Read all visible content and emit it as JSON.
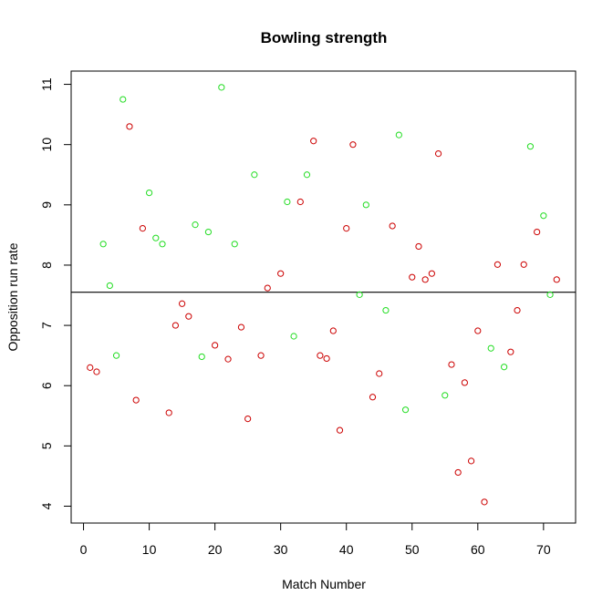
{
  "chart_data": {
    "type": "scatter",
    "title": "Bowling strength",
    "xlabel": "Match Number",
    "ylabel": "Opposition run rate",
    "xlim": [
      -1.88,
      74.88
    ],
    "ylim": [
      3.72,
      11.22
    ],
    "x_ticks": [
      0,
      10,
      20,
      30,
      40,
      50,
      60,
      70
    ],
    "x_tick_labels": [
      "0",
      "10",
      "20",
      "30",
      "40",
      "50",
      "60",
      "70"
    ],
    "y_ticks": [
      4,
      5,
      6,
      7,
      8,
      9,
      10,
      11
    ],
    "y_tick_labels": [
      "4",
      "5",
      "6",
      "7",
      "8",
      "9",
      "10",
      "11"
    ],
    "reference_line": {
      "y": 7.55,
      "color": "#000000"
    },
    "grid": false,
    "colors": {
      "red": "#cc0000",
      "green": "#22dd22"
    },
    "points": [
      {
        "x": 1,
        "y": 6.3,
        "color": "red"
      },
      {
        "x": 2,
        "y": 6.23,
        "color": "red"
      },
      {
        "x": 3,
        "y": 8.35,
        "color": "green"
      },
      {
        "x": 4,
        "y": 7.66,
        "color": "green"
      },
      {
        "x": 5,
        "y": 6.5,
        "color": "green"
      },
      {
        "x": 6,
        "y": 10.75,
        "color": "green"
      },
      {
        "x": 7,
        "y": 10.3,
        "color": "red"
      },
      {
        "x": 8,
        "y": 5.76,
        "color": "red"
      },
      {
        "x": 9,
        "y": 8.61,
        "color": "red"
      },
      {
        "x": 10,
        "y": 9.2,
        "color": "green"
      },
      {
        "x": 11,
        "y": 8.45,
        "color": "green"
      },
      {
        "x": 12,
        "y": 8.35,
        "color": "green"
      },
      {
        "x": 13,
        "y": 5.55,
        "color": "red"
      },
      {
        "x": 14,
        "y": 7.0,
        "color": "red"
      },
      {
        "x": 15,
        "y": 7.36,
        "color": "red"
      },
      {
        "x": 16,
        "y": 7.15,
        "color": "red"
      },
      {
        "x": 17,
        "y": 8.67,
        "color": "green"
      },
      {
        "x": 18,
        "y": 6.48,
        "color": "green"
      },
      {
        "x": 19,
        "y": 8.55,
        "color": "green"
      },
      {
        "x": 20,
        "y": 6.67,
        "color": "red"
      },
      {
        "x": 21,
        "y": 10.95,
        "color": "green"
      },
      {
        "x": 22,
        "y": 6.44,
        "color": "red"
      },
      {
        "x": 23,
        "y": 8.35,
        "color": "green"
      },
      {
        "x": 24,
        "y": 6.97,
        "color": "red"
      },
      {
        "x": 25,
        "y": 5.45,
        "color": "red"
      },
      {
        "x": 26,
        "y": 9.5,
        "color": "green"
      },
      {
        "x": 27,
        "y": 6.5,
        "color": "red"
      },
      {
        "x": 28,
        "y": 7.62,
        "color": "red"
      },
      {
        "x": 30,
        "y": 7.86,
        "color": "red"
      },
      {
        "x": 31,
        "y": 9.05,
        "color": "green"
      },
      {
        "x": 32,
        "y": 6.82,
        "color": "green"
      },
      {
        "x": 33,
        "y": 9.05,
        "color": "red"
      },
      {
        "x": 34,
        "y": 9.5,
        "color": "green"
      },
      {
        "x": 35,
        "y": 10.06,
        "color": "red"
      },
      {
        "x": 36,
        "y": 6.5,
        "color": "red"
      },
      {
        "x": 37,
        "y": 6.45,
        "color": "red"
      },
      {
        "x": 38,
        "y": 6.91,
        "color": "red"
      },
      {
        "x": 39,
        "y": 5.26,
        "color": "red"
      },
      {
        "x": 40,
        "y": 8.61,
        "color": "red"
      },
      {
        "x": 41,
        "y": 10.0,
        "color": "red"
      },
      {
        "x": 42,
        "y": 7.51,
        "color": "green"
      },
      {
        "x": 43,
        "y": 9.0,
        "color": "green"
      },
      {
        "x": 44,
        "y": 5.81,
        "color": "red"
      },
      {
        "x": 45,
        "y": 6.2,
        "color": "red"
      },
      {
        "x": 46,
        "y": 7.25,
        "color": "green"
      },
      {
        "x": 47,
        "y": 8.65,
        "color": "red"
      },
      {
        "x": 48,
        "y": 10.16,
        "color": "green"
      },
      {
        "x": 49,
        "y": 5.6,
        "color": "green"
      },
      {
        "x": 50,
        "y": 7.8,
        "color": "red"
      },
      {
        "x": 51,
        "y": 8.31,
        "color": "red"
      },
      {
        "x": 52,
        "y": 7.76,
        "color": "red"
      },
      {
        "x": 53,
        "y": 7.86,
        "color": "red"
      },
      {
        "x": 54,
        "y": 9.85,
        "color": "red"
      },
      {
        "x": 55,
        "y": 5.84,
        "color": "green"
      },
      {
        "x": 56,
        "y": 6.35,
        "color": "red"
      },
      {
        "x": 57,
        "y": 4.56,
        "color": "red"
      },
      {
        "x": 58,
        "y": 6.05,
        "color": "red"
      },
      {
        "x": 59,
        "y": 4.75,
        "color": "red"
      },
      {
        "x": 60,
        "y": 6.91,
        "color": "red"
      },
      {
        "x": 61,
        "y": 4.07,
        "color": "red"
      },
      {
        "x": 62,
        "y": 6.62,
        "color": "green"
      },
      {
        "x": 63,
        "y": 8.01,
        "color": "red"
      },
      {
        "x": 64,
        "y": 6.31,
        "color": "green"
      },
      {
        "x": 65,
        "y": 6.56,
        "color": "red"
      },
      {
        "x": 66,
        "y": 7.25,
        "color": "red"
      },
      {
        "x": 67,
        "y": 8.01,
        "color": "red"
      },
      {
        "x": 68,
        "y": 9.97,
        "color": "green"
      },
      {
        "x": 69,
        "y": 8.55,
        "color": "red"
      },
      {
        "x": 70,
        "y": 8.82,
        "color": "green"
      },
      {
        "x": 71,
        "y": 7.51,
        "color": "green"
      },
      {
        "x": 72,
        "y": 7.76,
        "color": "red"
      }
    ]
  }
}
